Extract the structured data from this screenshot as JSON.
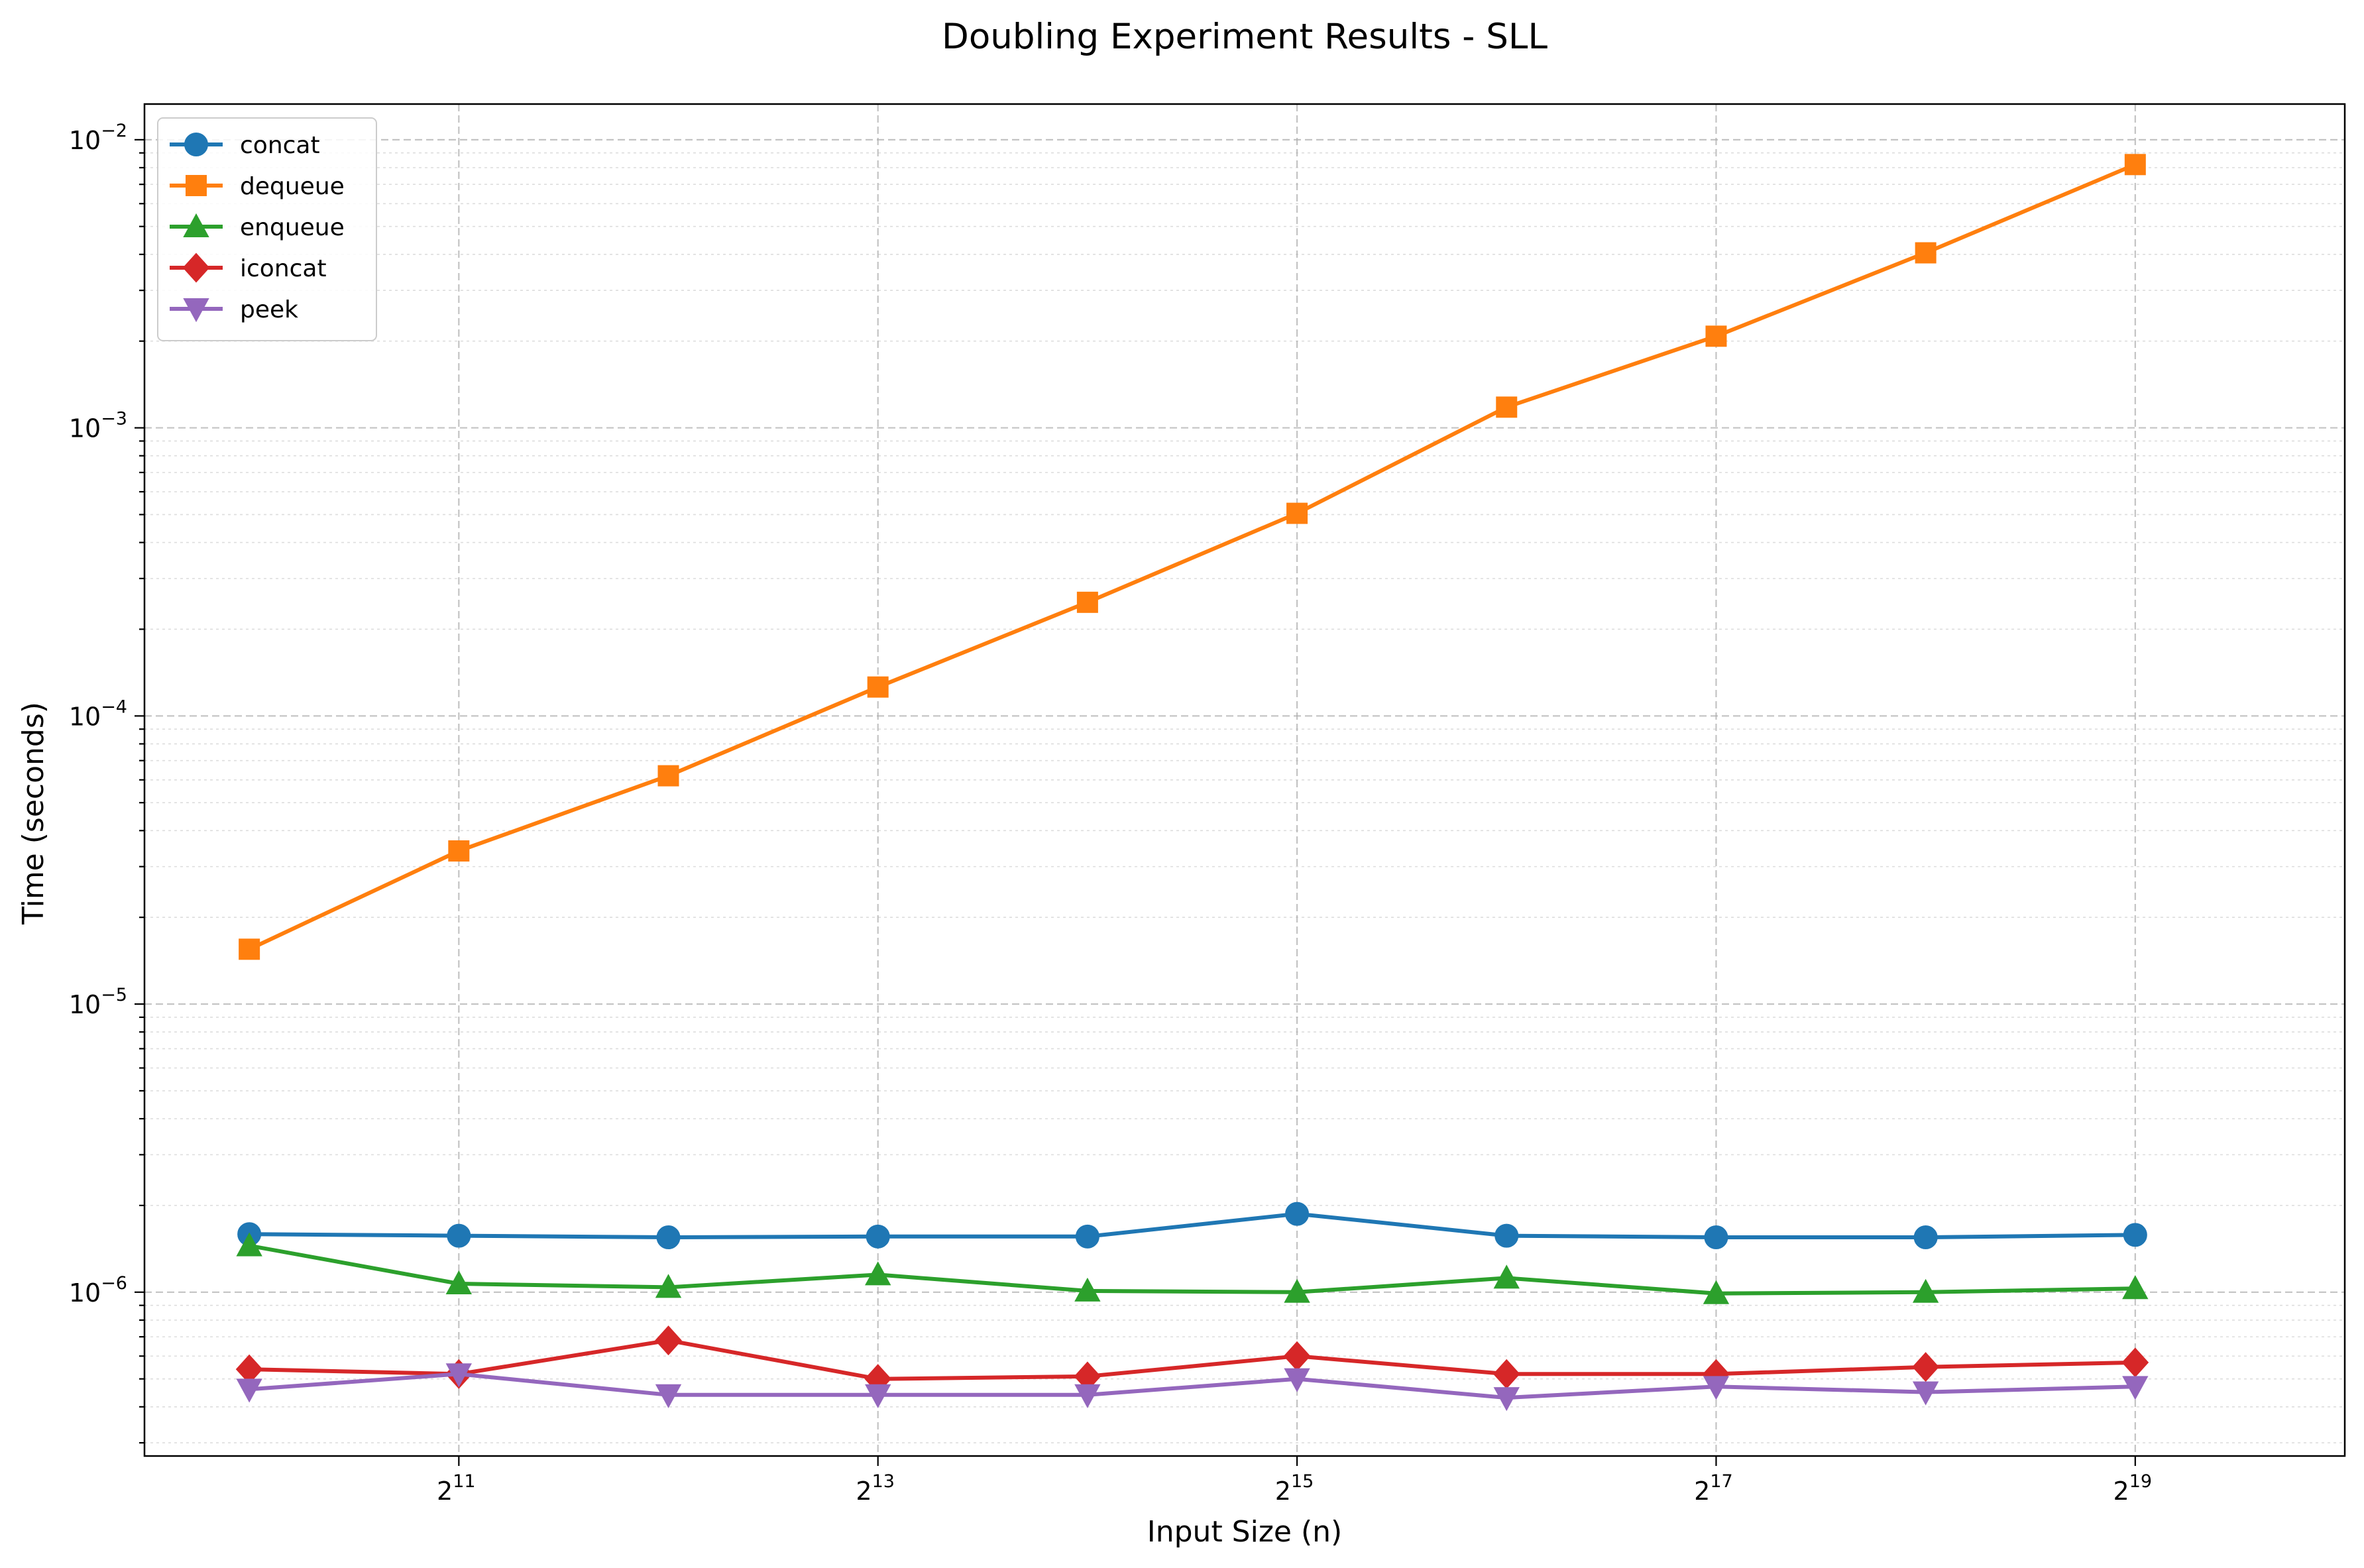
{
  "chart_data": {
    "type": "line",
    "title": "Doubling Experiment Results - SLL",
    "xlabel": "Input Size (n)",
    "ylabel": "Time (seconds)",
    "xscale": "log2",
    "yscale": "log10",
    "x": [
      1024,
      2048,
      4096,
      8192,
      16384,
      32768,
      65536,
      131072,
      262144,
      524288
    ],
    "xlim": [
      724,
      1048576
    ],
    "ylim": [
      2.7e-07,
      0.0133
    ],
    "x_ticks": [
      {
        "value": 2048,
        "base": "2",
        "exp": "11"
      },
      {
        "value": 8192,
        "base": "2",
        "exp": "13"
      },
      {
        "value": 32768,
        "base": "2",
        "exp": "15"
      },
      {
        "value": 131072,
        "base": "2",
        "exp": "17"
      },
      {
        "value": 524288,
        "base": "2",
        "exp": "19"
      }
    ],
    "y_ticks": [
      {
        "value": 1e-06,
        "base": "10",
        "exp": "−6"
      },
      {
        "value": 1e-05,
        "base": "10",
        "exp": "−5"
      },
      {
        "value": 0.0001,
        "base": "10",
        "exp": "−4"
      },
      {
        "value": 0.001,
        "base": "10",
        "exp": "−3"
      },
      {
        "value": 0.01,
        "base": "10",
        "exp": "−2"
      }
    ],
    "grid": true,
    "legend_position": "top-left",
    "series": [
      {
        "name": "concat",
        "color": "#1f77b4",
        "marker": "circle",
        "values": [
          1.59e-06,
          1.57e-06,
          1.55e-06,
          1.56e-06,
          1.56e-06,
          1.87e-06,
          1.57e-06,
          1.55e-06,
          1.55e-06,
          1.58e-06
        ]
      },
      {
        "name": "dequeue",
        "color": "#ff7f0e",
        "marker": "square",
        "values": [
          1.55e-05,
          3.4e-05,
          6.2e-05,
          0.000126,
          0.000248,
          0.000505,
          0.00118,
          0.00208,
          0.00405,
          0.0082
        ]
      },
      {
        "name": "enqueue",
        "color": "#2ca02c",
        "marker": "triangle-up",
        "values": [
          1.45e-06,
          1.07e-06,
          1.04e-06,
          1.15e-06,
          1.01e-06,
          1e-06,
          1.12e-06,
          9.9e-07,
          1e-06,
          1.03e-06
        ]
      },
      {
        "name": "iconcat",
        "color": "#d62728",
        "marker": "diamond",
        "values": [
          5.4e-07,
          5.2e-07,
          6.8e-07,
          5e-07,
          5.1e-07,
          6e-07,
          5.2e-07,
          5.2e-07,
          5.5e-07,
          5.7e-07
        ]
      },
      {
        "name": "peek",
        "color": "#9467bd",
        "marker": "triangle-down",
        "values": [
          4.6e-07,
          5.2e-07,
          4.4e-07,
          4.4e-07,
          4.4e-07,
          5e-07,
          4.3e-07,
          4.7e-07,
          4.5e-07,
          4.7e-07
        ]
      }
    ]
  }
}
